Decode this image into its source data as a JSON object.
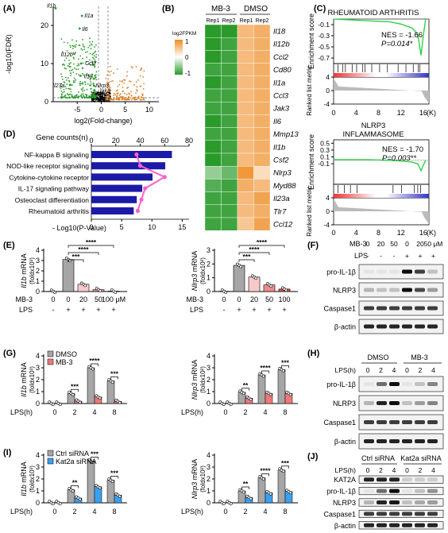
{
  "panels": {
    "A": {
      "letter": "(A)",
      "ylabel": "-log10(FDR)",
      "xlabel": "log2(Fold-change)",
      "xticks": [
        "-5",
        "0",
        "5",
        "10"
      ],
      "yticks": [
        "0",
        "10",
        "20"
      ],
      "gene_labels": [
        "Il1b",
        "Il1a",
        "Il6",
        "Il12b",
        "Ccl2",
        "Il18",
        "Il23a",
        "Nlrp3",
        "Jak3"
      ]
    },
    "B": {
      "letter": "(B)",
      "group_labels": [
        "MB-3",
        "DMSO"
      ],
      "rep_labels": [
        "Rep1",
        "Rep2",
        "Rep1",
        "Rep2"
      ],
      "legend_title": "log2FPKM",
      "legend_ticks": [
        "1",
        "0",
        "-1"
      ],
      "genes": [
        "Il18",
        "Il12b",
        "Ccl2",
        "Cd80",
        "Il1a",
        "Ccl3",
        "Jak3",
        "Il6",
        "Mmp13",
        "Il1b",
        "Csf2",
        "Nlrp3",
        "Myd88",
        "Il23a",
        "Tlr7",
        "Ccl12"
      ]
    },
    "C": {
      "letter": "(C)",
      "ylabel_es": "Enrichment score",
      "ylabel_metric": "Ranked list metric",
      "xlabel": "(K)",
      "xticks": [
        "0",
        "4",
        "8",
        "12",
        "16"
      ],
      "es_ticks": [
        "-0.1",
        "-0.3",
        "-0.5",
        "-0.7"
      ],
      "es_ticks_2": [
        "0.5",
        "0.3",
        "0.1",
        "-0.1"
      ],
      "metric_ticks": [
        "4",
        "0",
        "-4"
      ],
      "plot1": {
        "title": "RHEUMATOID ARTHRITIS",
        "nes": "NES = -1.66",
        "p": "P=0.014*"
      },
      "plot2": {
        "title_line1": "NLRP3",
        "title_line2": "INFLAMMASOME",
        "nes": "NES = -1.70",
        "p": "P=0.003**"
      }
    },
    "D": {
      "letter": "(D)",
      "top_axis_label": "Gene counts(n)",
      "top_ticks": [
        "0",
        "20",
        "40",
        "60",
        "80"
      ],
      "bottom_ticks": [
        "0",
        "5",
        "10",
        "15"
      ],
      "bottom_axis_label": "- Log10(P-Value)",
      "pathways": [
        "NF-kappa B signaling",
        "NOD-like receptor signaling",
        "Cytokine-cytokine receptor",
        "IL-17 signaling pathway",
        "Osteoclast differentiation",
        "Rheumatoid arthritis"
      ]
    },
    "E": {
      "letter": "(E)",
      "left": {
        "ylabel_gene": "Il1b",
        "ylabel_rest": " mRNA",
        "ylabel_unit": "(foldx10³)",
        "yticks": [
          "0",
          "1",
          "2",
          "3",
          "4"
        ]
      },
      "right": {
        "ylabel_gene": "Nlrp3",
        "ylabel_rest": " mRNA",
        "ylabel_unit": "(foldx10²)",
        "yticks": [
          "0",
          "1",
          "2",
          "3"
        ]
      },
      "row1_label": "MB-3",
      "row2_label": "LPS",
      "mb3_values": [
        "0",
        "0",
        "20",
        "50",
        "100 μM"
      ],
      "mb3_values_short": [
        "0",
        "0",
        "20",
        "50",
        "100"
      ],
      "lps_values": [
        "-",
        "+",
        "+",
        "+",
        "+"
      ],
      "sig": [
        "****",
        "****",
        "***"
      ]
    },
    "F": {
      "letter": "(F)",
      "mb3_label": "MB-3",
      "mb3_values": [
        "0",
        "20",
        "50",
        "0",
        "20",
        "50 μM"
      ],
      "lps_label": "LPS",
      "lps_values": [
        "-",
        "-",
        "-",
        "+",
        "+",
        "+"
      ],
      "bands": [
        "pro-IL-1β",
        "NLRP3",
        "Caspase1",
        "β-actin"
      ]
    },
    "G": {
      "letter": "(G)",
      "legend": [
        "DMSO",
        "MB-3"
      ],
      "left": {
        "ylabel_gene": "Il1b",
        "ylabel_rest": " mRNA",
        "ylabel_unit": "(foldx10³)",
        "yticks": [
          "0",
          "1",
          "2",
          "3",
          "4"
        ],
        "sig": [
          "***",
          "****",
          "***"
        ]
      },
      "right": {
        "ylabel_gene": "Nlrp3",
        "ylabel_rest": " mRNA",
        "ylabel_unit": "(foldx10²)",
        "yticks": [
          "0",
          "1",
          "2",
          "3",
          "4"
        ],
        "sig": [
          "**",
          "****",
          "***"
        ]
      },
      "xlabel": "LPS(h)",
      "xticks": [
        "0",
        "2",
        "4",
        "8"
      ]
    },
    "H": {
      "letter": "(H)",
      "groups": [
        "DMSO",
        "MB-3"
      ],
      "lps_label": "LPS(h)",
      "time_values": [
        "0",
        "2",
        "4",
        "0",
        "2",
        "4"
      ],
      "bands": [
        "pro-IL-1β",
        "NLRP3",
        "Caspase1",
        "β-actin"
      ]
    },
    "I": {
      "letter": "(I)",
      "legend": [
        "Ctrl siRNA",
        "Kat2a siRNA"
      ],
      "left": {
        "ylabel_gene": "Il1b",
        "ylabel_rest": " mRNA",
        "ylabel_unit": "(foldx10³)",
        "yticks": [
          "0",
          "1",
          "2",
          "3",
          "4"
        ],
        "sig": [
          "**",
          "***",
          "***"
        ]
      },
      "right": {
        "ylabel_gene": "Nlrp3",
        "ylabel_rest": " mRNA",
        "ylabel_unit": "(foldx10²)",
        "yticks": [
          "0",
          "1",
          "2",
          "3",
          "4"
        ],
        "sig": [
          "**",
          "****",
          "***"
        ]
      },
      "xlabel": "LPS(h)",
      "xticks": [
        "0",
        "2",
        "4",
        "8"
      ]
    },
    "J": {
      "letter": "(J)",
      "groups": [
        "Ctrl siRNA",
        "Kat2a siRNA"
      ],
      "lps_label": "LPS(h)",
      "time_values": [
        "0",
        "2",
        "4",
        "0",
        "2",
        "4"
      ],
      "bands": [
        "KAT2A",
        "pro-IL-1β",
        "NLRP3",
        "Caspase1",
        "β-actin"
      ]
    }
  },
  "chart_data": [
    {
      "type": "scatter",
      "panel": "A",
      "xlabel": "log2(Fold-change)",
      "ylabel": "-log10(FDR)",
      "xlim": [
        -10,
        12
      ],
      "ylim": [
        0,
        25
      ],
      "labeled_points": [
        {
          "name": "Il1b",
          "x": -9.5,
          "y": 24.5
        },
        {
          "name": "Il1a",
          "x": -4,
          "y": 22.5
        },
        {
          "name": "Il6",
          "x": -4.5,
          "y": 19.2
        },
        {
          "name": "Il12b",
          "x": -5.6,
          "y": 12.5
        },
        {
          "name": "Ccl2",
          "x": -4.2,
          "y": 10
        },
        {
          "name": "Il18",
          "x": -4.3,
          "y": 6.8
        },
        {
          "name": "Il23a",
          "x": -6.5,
          "y": 4.4
        },
        {
          "name": "Nlrp3",
          "x": -1.5,
          "y": 4.2
        },
        {
          "name": "Jak3",
          "x": -1.4,
          "y": 3.0
        }
      ],
      "colors": {
        "down": "#2a9a2a",
        "up": "#e07d1a",
        "ns": "#9a9a9a"
      }
    },
    {
      "type": "heatmap",
      "panel": "B",
      "rows": [
        "Il18",
        "Il12b",
        "Ccl2",
        "Cd80",
        "Il1a",
        "Ccl3",
        "Jak3",
        "Il6",
        "Mmp13",
        "Il1b",
        "Csf2",
        "Nlrp3",
        "Myd88",
        "Il23a",
        "Tlr7",
        "Ccl12"
      ],
      "columns": [
        "MB-3 Rep1",
        "MB-3 Rep2",
        "DMSO Rep1",
        "DMSO Rep2"
      ],
      "values": [
        [
          -1,
          -1,
          0.6,
          0.7
        ],
        [
          -1,
          -0.9,
          0.6,
          0.7
        ],
        [
          -1,
          -0.9,
          0.6,
          0.7
        ],
        [
          -0.9,
          -0.9,
          0.6,
          0.7
        ],
        [
          -1,
          -0.9,
          0.6,
          0.7
        ],
        [
          -0.9,
          -0.9,
          0.6,
          0.7
        ],
        [
          -0.9,
          -0.9,
          0.6,
          0.7
        ],
        [
          -1,
          -0.9,
          0.6,
          0.7
        ],
        [
          -0.9,
          -0.9,
          0.6,
          0.7
        ],
        [
          -1,
          -0.9,
          0.6,
          0.7
        ],
        [
          -1,
          -0.9,
          0.6,
          0.7
        ],
        [
          -0.5,
          -0.7,
          0.9,
          0.3
        ],
        [
          -0.8,
          -0.9,
          0.7,
          0.6
        ],
        [
          -0.9,
          -0.9,
          0.6,
          0.8
        ],
        [
          -0.9,
          -0.9,
          0.6,
          0.7
        ],
        [
          -0.9,
          -0.9,
          0.5,
          0.8
        ]
      ],
      "scale": {
        "min": -1,
        "max": 1,
        "low": "#2a9a2a",
        "mid": "#ffffff",
        "high": "#ee8c24"
      }
    },
    {
      "type": "line",
      "panel": "C1",
      "title": "RHEUMATOID ARTHRITIS",
      "x": [
        0,
        2,
        4,
        6,
        8,
        10,
        12,
        14,
        15,
        15.6,
        16,
        16.4
      ],
      "y": [
        0,
        -0.01,
        -0.02,
        -0.03,
        -0.04,
        -0.05,
        -0.09,
        -0.16,
        -0.28,
        -0.65,
        -0.3,
        0
      ],
      "xlim": [
        0,
        17
      ],
      "ylim": [
        -0.8,
        0
      ],
      "hit_positions": [
        0.8,
        1.6,
        2.1,
        3.3,
        4.1,
        5.2,
        5.6,
        6.8,
        8.2,
        9.6,
        11.5,
        12.9,
        14.2,
        15.1,
        15.4
      ]
    },
    {
      "type": "line",
      "panel": "C2",
      "title": "NLRP3 INFLAMMASOME",
      "x": [
        0,
        2,
        4,
        6,
        8,
        10,
        12,
        14,
        15,
        15.6,
        16,
        16.4
      ],
      "y": [
        0.02,
        0.02,
        0.02,
        0.02,
        0.01,
        0,
        -0.02,
        -0.05,
        -0.1,
        -0.3,
        -0.15,
        0
      ],
      "xlim": [
        0,
        17
      ],
      "ylim": [
        -0.7,
        0.6
      ],
      "hit_positions": [
        0.8,
        1.9,
        3.0,
        4.2,
        10.6,
        12.1,
        14.4,
        15.0,
        15.5
      ]
    },
    {
      "type": "bar",
      "panel": "D",
      "categories": [
        "NF-kappa B signaling",
        "NOD-like receptor signaling",
        "Cytokine-cytokine receptor",
        "IL-17 signaling pathway",
        "Osteoclast differentiation",
        "Rheumatoid arthritis"
      ],
      "series": [
        {
          "name": "-Log10(P-Value)",
          "values": [
            13.3,
            12.2,
            10.1,
            8.4,
            7.5,
            7.0
          ],
          "color": "#1b1ba8"
        },
        {
          "name": "Gene counts(n)",
          "values": [
            37,
            40,
            60,
            44,
            41,
            38
          ],
          "color": "#ff5fcf"
        }
      ],
      "xlim_bottom": [
        0,
        15
      ],
      "xlim_top": [
        0,
        80
      ]
    },
    {
      "type": "bar",
      "panel": "E-left",
      "categories": [
        "0/-",
        "0/+",
        "20/+",
        "50/+",
        "100/+"
      ],
      "values": [
        0.02,
        3.1,
        0.7,
        0.18,
        0.04
      ],
      "ylim": [
        0,
        4
      ]
    },
    {
      "type": "bar",
      "panel": "E-right",
      "categories": [
        "0/-",
        "0/+",
        "20/+",
        "50/+",
        "100/+"
      ],
      "values": [
        0.02,
        1.9,
        1.05,
        0.48,
        0.18
      ],
      "ylim": [
        0,
        3
      ]
    },
    {
      "type": "bar",
      "panel": "G-left",
      "categories": [
        "0",
        "2",
        "4",
        "8"
      ],
      "series": [
        {
          "name": "DMSO",
          "values": [
            0.02,
            0.85,
            3.0,
            1.9
          ]
        },
        {
          "name": "MB-3",
          "values": [
            0.02,
            0.2,
            0.55,
            0.18
          ]
        }
      ],
      "ylim": [
        0,
        4
      ]
    },
    {
      "type": "bar",
      "panel": "G-right",
      "categories": [
        "0",
        "2",
        "4",
        "8"
      ],
      "series": [
        {
          "name": "DMSO",
          "values": [
            0.02,
            0.95,
            2.4,
            2.85
          ]
        },
        {
          "name": "MB-3",
          "values": [
            0.02,
            0.45,
            0.85,
            0.85
          ]
        }
      ],
      "ylim": [
        0,
        4
      ]
    },
    {
      "type": "bar",
      "panel": "I-left",
      "categories": [
        "0",
        "2",
        "4",
        "8"
      ],
      "series": [
        {
          "name": "Ctrl siRNA",
          "values": [
            0.02,
            1.1,
            3.5,
            1.9
          ]
        },
        {
          "name": "Kat2a siRNA",
          "values": [
            0.02,
            0.4,
            1.35,
            0.65
          ]
        }
      ],
      "ylim": [
        0,
        4
      ]
    },
    {
      "type": "bar",
      "panel": "I-right",
      "categories": [
        "0",
        "2",
        "4",
        "8"
      ],
      "series": [
        {
          "name": "Ctrl siRNA",
          "values": [
            0.02,
            1.0,
            2.1,
            2.75
          ]
        },
        {
          "name": "Kat2a siRNA",
          "values": [
            0.02,
            0.45,
            0.85,
            0.95
          ]
        }
      ],
      "ylim": [
        0,
        4
      ]
    }
  ],
  "colors": {
    "up": "#e07d1a",
    "down": "#2a9a2a",
    "heat_high": "#ee8c24",
    "heat_low": "#2a9a2a",
    "es_line": "#22d03a",
    "bar_blue": "#1b1ba8",
    "line_pink": "#ff5fcf",
    "dmso_bar": "#a6a6a6",
    "mb3_bar": "#f07878",
    "ctrl_bar": "#a6a6a6",
    "kat2a_bar": "#3aa0f0"
  }
}
